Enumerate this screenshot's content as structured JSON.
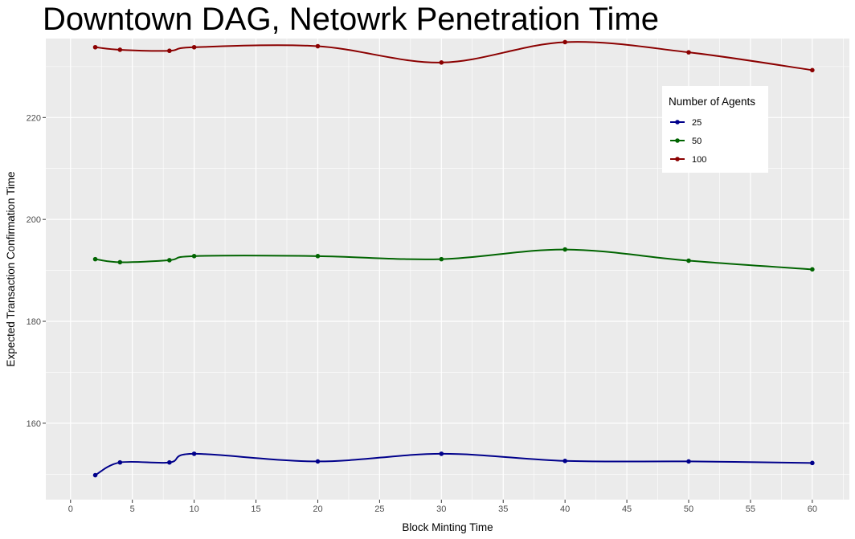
{
  "chart_data": {
    "type": "line",
    "title": "Downtown DAG, Netowrk Penetration Time",
    "xlabel": "Block Minting Time",
    "ylabel": "Expected Transaction Confirmation Time",
    "xlim": [
      -2,
      63
    ],
    "ylim": [
      145,
      235.5
    ],
    "x_ticks": [
      0,
      5,
      10,
      15,
      20,
      25,
      30,
      35,
      40,
      45,
      50,
      55,
      60
    ],
    "y_ticks": [
      160,
      180,
      200,
      220
    ],
    "grid": true,
    "background": "#ebebeb",
    "legend": {
      "title": "Number of Agents",
      "position": "top-right"
    },
    "x": [
      2,
      4,
      8,
      10,
      20,
      30,
      40,
      50,
      60
    ],
    "series": [
      {
        "name": "25",
        "color": "#00008b",
        "values": [
          149.8,
          152.3,
          152.3,
          154.0,
          152.5,
          154.0,
          152.6,
          152.5,
          152.2
        ]
      },
      {
        "name": "50",
        "color": "#006400",
        "values": [
          192.2,
          191.6,
          192.0,
          192.8,
          192.8,
          192.2,
          194.1,
          191.9,
          190.2
        ]
      },
      {
        "name": "100",
        "color": "#8b0000",
        "values": [
          233.8,
          233.3,
          233.1,
          233.8,
          234.0,
          230.8,
          234.8,
          232.8,
          229.3
        ]
      }
    ]
  }
}
